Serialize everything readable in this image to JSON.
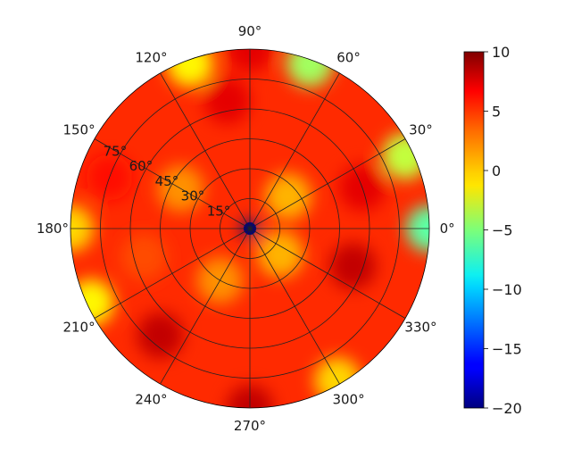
{
  "chart_data": {
    "type": "heatmap",
    "projection": "polar",
    "title": "",
    "angle_unit": "degrees",
    "angular_ticks": [
      0,
      30,
      60,
      90,
      120,
      150,
      180,
      210,
      240,
      270,
      300,
      330
    ],
    "angular_tick_labels": [
      "0°",
      "30°",
      "60°",
      "90°",
      "120°",
      "150°",
      "180°",
      "210°",
      "240°",
      "270°",
      "300°",
      "330°"
    ],
    "radial_ticks": [
      15,
      30,
      45,
      60,
      75
    ],
    "radial_tick_labels": [
      "15°",
      "30°",
      "45°",
      "60°",
      "75°"
    ],
    "radial_range": [
      0,
      90
    ],
    "radial_axis_note": "radius = 90 - elevation (zenith at center)",
    "colormap": "jet",
    "colorbar": {
      "vmin": -20,
      "vmax": 10,
      "ticks": [
        10,
        5,
        0,
        -5,
        -10,
        -15,
        -20
      ],
      "tick_labels": [
        "10",
        "5",
        "0",
        "−5",
        "−10",
        "−15",
        "−20"
      ]
    },
    "value_samples": {
      "description": "approximate interpolated values read from the heatmap",
      "baseline": 5,
      "hotspots": [
        {
          "azimuth": 0,
          "radius": 0,
          "value": -20
        },
        {
          "azimuth": 0,
          "radius": 90,
          "value": -6
        },
        {
          "azimuth": 90,
          "radius": 90,
          "value": 7
        },
        {
          "azimuth": 180,
          "radius": 90,
          "value": 0
        },
        {
          "azimuth": 270,
          "radius": 90,
          "value": 8
        },
        {
          "azimuth": 70,
          "radius": 88,
          "value": -4
        },
        {
          "azimuth": 110,
          "radius": 88,
          "value": -1
        },
        {
          "azimuth": 25,
          "radius": 86,
          "value": -3
        },
        {
          "azimuth": 205,
          "radius": 88,
          "value": -1
        },
        {
          "azimuth": 300,
          "radius": 88,
          "value": 0
        },
        {
          "azimuth": 195,
          "radius": 55,
          "value": 4
        },
        {
          "azimuth": 150,
          "radius": 40,
          "value": 2
        },
        {
          "azimuth": 40,
          "radius": 25,
          "value": 1
        },
        {
          "azimuth": 320,
          "radius": 20,
          "value": 1
        },
        {
          "azimuth": 240,
          "radius": 30,
          "value": 2
        },
        {
          "azimuth": 100,
          "radius": 65,
          "value": 7
        },
        {
          "azimuth": 20,
          "radius": 60,
          "value": 7
        },
        {
          "azimuth": 340,
          "radius": 55,
          "value": 8
        },
        {
          "azimuth": 230,
          "radius": 70,
          "value": 8
        },
        {
          "azimuth": 160,
          "radius": 75,
          "value": 6
        }
      ]
    }
  }
}
